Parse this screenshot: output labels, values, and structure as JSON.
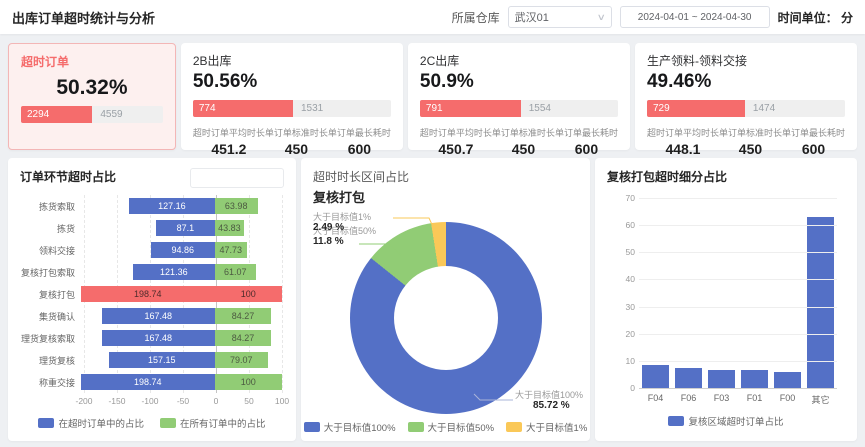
{
  "header": {
    "title": "出库订单超时统计与分析",
    "warehouse_label": "所属仓库",
    "warehouse_value": "武汉01",
    "date_range": "2024-04-01  ~  2024-04-30",
    "time_unit": "时间单位： 分"
  },
  "kpi_cards": [
    {
      "title": "超时订单",
      "percent": "50.32%",
      "numerator": "2294",
      "denominator": "4559",
      "fill": 50.32
    },
    {
      "title": "2B出库",
      "percent": "50.56%",
      "numerator": "774",
      "denominator": "1531",
      "fill": 50.56,
      "metrics": [
        {
          "label": "超时订单平均时长",
          "value": "451.2"
        },
        {
          "label": "单订单标准时长",
          "value": "450"
        },
        {
          "label": "单订单最长耗时",
          "value": "600"
        }
      ]
    },
    {
      "title": "2C出库",
      "percent": "50.9%",
      "numerator": "791",
      "denominator": "1554",
      "fill": 50.9,
      "metrics": [
        {
          "label": "超时订单平均时长",
          "value": "450.7"
        },
        {
          "label": "单订单标准时长",
          "value": "450"
        },
        {
          "label": "单订单最长耗时",
          "value": "600"
        }
      ]
    },
    {
      "title": "生产领料-领料交接",
      "percent": "49.46%",
      "numerator": "729",
      "denominator": "1474",
      "fill": 49.46,
      "metrics": [
        {
          "label": "超时订单平均时长",
          "value": "448.1"
        },
        {
          "label": "单订单标准时长",
          "value": "450"
        },
        {
          "label": "单订单最长耗时",
          "value": "600"
        }
      ]
    }
  ],
  "colors": {
    "blue": "#5470c6",
    "green": "#91cc75",
    "yellow": "#fac858",
    "red": "#f56c6c"
  },
  "chart_data": [
    {
      "type": "bar",
      "orientation": "horizontal-diverging",
      "title": "订单环节超时占比",
      "categories": [
        "拣货索取",
        "拣货",
        "领料交接",
        "复核打包索取",
        "复核打包",
        "集货确认",
        "理货复核索取",
        "理货复核",
        "称重交接"
      ],
      "series": [
        {
          "name": "在超时订单中的占比",
          "color": "#5470c6",
          "values": [
            127.16,
            87.1,
            94.86,
            121.36,
            198.74,
            167.48,
            167.48,
            157.15,
            198.74
          ]
        },
        {
          "name": "在所有订单中的占比",
          "color": "#91cc75",
          "values": [
            63.98,
            43.83,
            47.73,
            61.07,
            100,
            84.27,
            84.27,
            79.07,
            100
          ]
        }
      ],
      "highlight_category": "复核打包",
      "highlight_color": "#f56c6c",
      "xlim": [
        -200,
        100
      ],
      "x_ticks": [
        -200,
        -150,
        -100,
        -50,
        0,
        50,
        100
      ],
      "legend_position": "bottom",
      "grid": "dashed-vertical"
    },
    {
      "type": "pie",
      "title": "超时时长区间占比",
      "subtitle": "复核打包",
      "donut": true,
      "slices": [
        {
          "label": "大于目标值100%",
          "value": 85.72,
          "display": "85.72 %",
          "color": "#5470c6"
        },
        {
          "label": "大于目标值50%",
          "value": 11.8,
          "display": "11.8 %",
          "color": "#91cc75"
        },
        {
          "label": "大于目标值1%",
          "value": 2.49,
          "display": "2.49 %",
          "color": "#fac858"
        }
      ],
      "legend": [
        "大于目标值100%",
        "大于目标值50%",
        "大于目标值1%"
      ],
      "legend_position": "bottom"
    },
    {
      "type": "bar",
      "title": "复核打包超时细分占比",
      "categories": [
        "F04",
        "F06",
        "F03",
        "F01",
        "F00",
        "其它"
      ],
      "values": [
        8.8,
        7.6,
        7,
        6.9,
        6.3,
        63.5
      ],
      "color": "#5470c6",
      "legend": "复核区域超时订单占比",
      "legend_position": "bottom",
      "ylim": [
        0,
        70
      ],
      "y_ticks": [
        0,
        10,
        20,
        30,
        40,
        50,
        60,
        70
      ],
      "grid": "horizontal"
    }
  ]
}
